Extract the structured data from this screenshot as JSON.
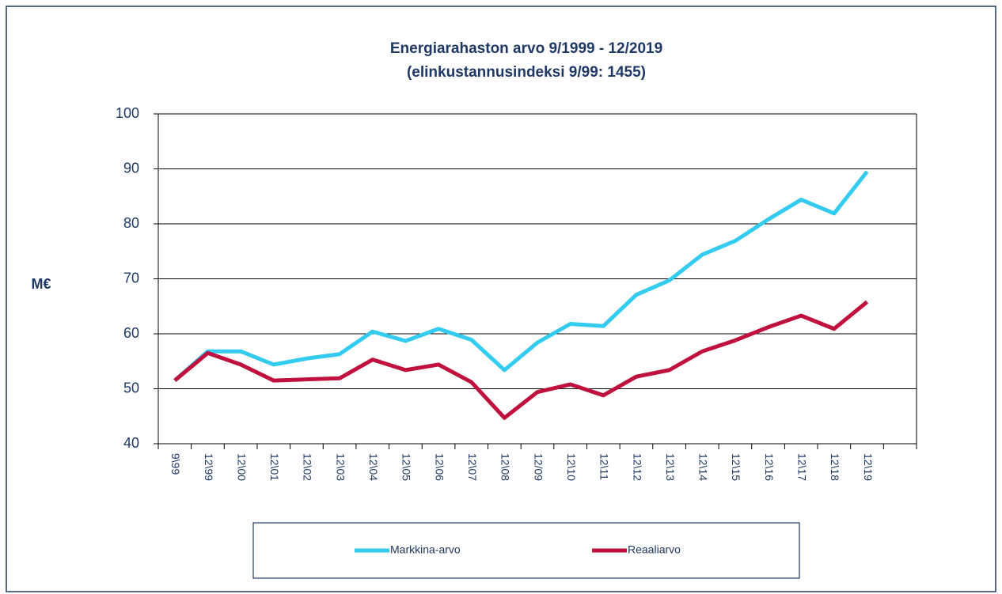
{
  "chart_data": {
    "type": "line",
    "title": "Energiarahaston arvo 9/1999 - 12/2019",
    "subtitle": "(elinkustannusindeksi 9/99: 1455)",
    "y_label": "M€",
    "categories": [
      "9\\99",
      "12\\99",
      "12\\00",
      "12\\01",
      "12\\02",
      "12\\03",
      "12\\04",
      "12\\05",
      "12\\06",
      "12\\07",
      "12\\08",
      "12/09",
      "12\\10",
      "12\\11",
      "12\\12",
      "12\\13",
      "12\\14",
      "12\\15",
      "12\\16",
      "12\\17",
      "12\\18",
      "12\\19",
      null
    ],
    "series": [
      {
        "name": "Markkina-arvo",
        "color": "#33ccf0",
        "values": [
          51.5,
          56.8,
          56.8,
          54.4,
          55.5,
          56.3,
          60.4,
          58.7,
          60.9,
          58.9,
          53.4,
          58.4,
          61.8,
          61.4,
          67.1,
          69.7,
          74.4,
          76.9,
          80.8,
          84.4,
          81.9,
          89.5,
          null
        ]
      },
      {
        "name": "Reaaliarvo",
        "color": "#c0103e",
        "values": [
          51.5,
          56.5,
          54.4,
          51.5,
          51.7,
          51.9,
          55.3,
          53.4,
          54.4,
          51.2,
          44.7,
          49.4,
          50.8,
          48.8,
          52.2,
          53.4,
          56.8,
          58.8,
          61.2,
          63.3,
          60.9,
          65.8,
          null
        ]
      }
    ],
    "ylim": [
      40,
      100
    ],
    "yticks": [
      40,
      50,
      60,
      70,
      80,
      90,
      100
    ],
    "grid": true
  }
}
